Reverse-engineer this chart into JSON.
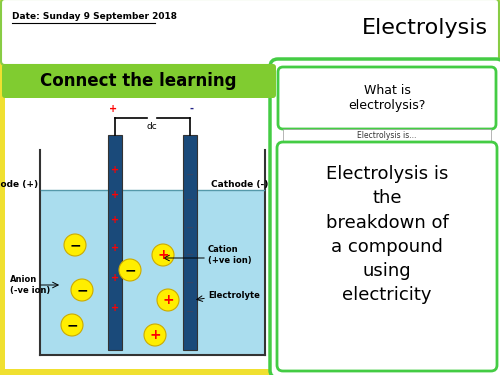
{
  "bg_color": "#f0e030",
  "title_text": "Electrolysis",
  "date_text": "Date: Sunday 9 September 2018",
  "connect_text": "Connect the learning",
  "connect_bg": "#80cc30",
  "what_is_text": "What is\nelectrolysis?",
  "main_text": "Electrolysis is\nthe\nbreakdown of\na compound\nusing\nelectricity",
  "right_box_bg": "#ffffff",
  "right_box_border": "#44cc44",
  "top_bar_bg": "#ffffff",
  "top_bar_border": "#88cc44",
  "title_fontsize": 16,
  "date_fontsize": 6.5,
  "connect_fontsize": 12,
  "main_fontsize": 13,
  "what_fontsize": 9,
  "anode_label": "Anode (+)",
  "cathode_label": "Cathode (-)",
  "anion_label": "Anion\n(-ve ion)",
  "cation_label": "Cation\n(+ve ion)",
  "electrolyte_label": "Electrolyte",
  "dc_label": "dc"
}
